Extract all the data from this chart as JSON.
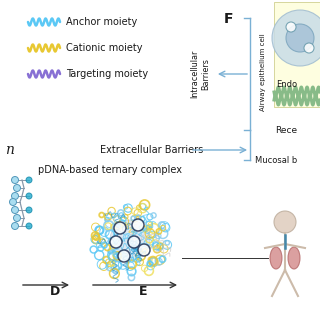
{
  "legend_items": [
    {
      "label": "Anchor moiety",
      "color": "#5bc8f5"
    },
    {
      "label": "Cationic moiety",
      "color": "#e8c832"
    },
    {
      "label": "Targeting moiety",
      "color": "#8870d4"
    }
  ],
  "labels": {
    "F": "F",
    "intracellular": "Intracellular\nBarriers",
    "extracellular": "Extracellular Barriers",
    "pdna": "pDNA-based ternary complex",
    "D": "D",
    "E": "E",
    "airway": "Airway epithelium cell",
    "endo": "Endo",
    "rece": "Rece",
    "mucosal": "Mucosal b",
    "n": "n"
  },
  "background_color": "#ffffff",
  "text_color": "#1a1a1a",
  "bracket_color": "#7ab0d4"
}
